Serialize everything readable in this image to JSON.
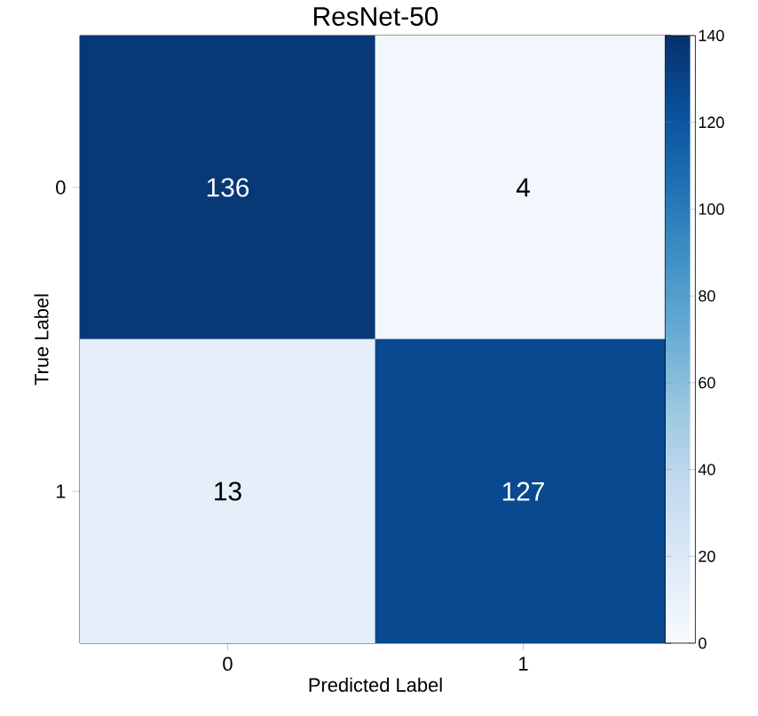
{
  "chart_data": {
    "type": "heatmap",
    "title": "ResNet-50",
    "xlabel": "Predicted Label",
    "ylabel": "True Label",
    "categories": [
      "0",
      "1"
    ],
    "y_categories": [
      "0",
      "1"
    ],
    "cells": [
      [
        136,
        4
      ],
      [
        13,
        127
      ]
    ],
    "clim": [
      0,
      140
    ],
    "cticks": [
      0,
      20,
      40,
      60,
      80,
      100,
      120,
      140
    ],
    "data_labels": true
  }
}
